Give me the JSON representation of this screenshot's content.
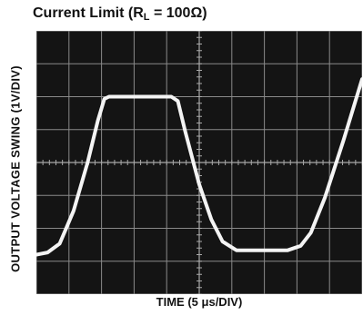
{
  "chart_data": {
    "type": "line",
    "title": {
      "main": "Current Limit (R",
      "sub": "L",
      "rest": " = 100Ω)"
    },
    "xlabel": "TIME (5 μs/DIV)",
    "ylabel": "OUTPUT VOLTAGE SWING (1V/DIV)",
    "grid": true,
    "xlim": [
      0,
      35
    ],
    "ylim": [
      0,
      6
    ],
    "series": [
      {
        "x": [
          0,
          1.2,
          2.5,
          4.0,
          5.5,
          6.6,
          7.3,
          7.8,
          14.5,
          15.2,
          16.0,
          17.5,
          18.8,
          20.0,
          21.5,
          27.0,
          28.4,
          29.5,
          31.0,
          33.0,
          35.0
        ],
        "values": [
          0.9,
          0.95,
          1.15,
          1.9,
          3.0,
          3.95,
          4.45,
          4.5,
          4.5,
          4.4,
          3.7,
          2.5,
          1.7,
          1.2,
          1.0,
          1.0,
          1.1,
          1.4,
          2.2,
          3.5,
          4.9
        ]
      }
    ],
    "trace_color": "#f4f4f4",
    "screen_color": "#141414",
    "grid_color": "#8a8a8a"
  }
}
